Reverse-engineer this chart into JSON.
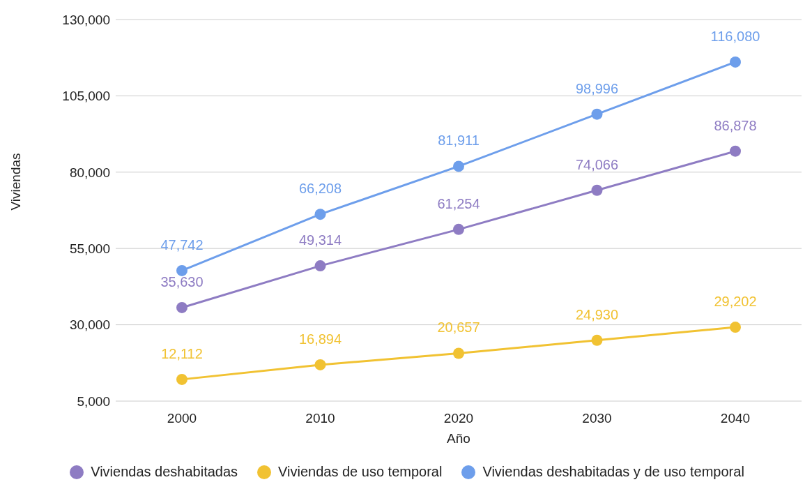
{
  "chart_data": {
    "type": "line",
    "xlabel": "Año",
    "ylabel": "Viviendas",
    "categories": [
      "2000",
      "2010",
      "2020",
      "2030",
      "2040"
    ],
    "series": [
      {
        "name": "Viviendas deshabitadas",
        "color": "#8e7cc3",
        "values": [
          35630,
          49314,
          61254,
          74066,
          86878
        ],
        "value_labels": [
          "35,630",
          "49,314",
          "61,254",
          "74,066",
          "86,878"
        ]
      },
      {
        "name": "Viviendas de uso temporal",
        "color": "#f1c232",
        "values": [
          12112,
          16894,
          20657,
          24930,
          29202
        ],
        "value_labels": [
          "12,112",
          "16,894",
          "20,657",
          "24,930",
          "29,202"
        ]
      },
      {
        "name": "Viviendas deshabitadas y de uso temporal",
        "color": "#6d9eeb",
        "values": [
          47742,
          66208,
          81911,
          98996,
          116080
        ],
        "value_labels": [
          "47,742",
          "66,208",
          "81,911",
          "98,996",
          "116,080"
        ]
      }
    ],
    "ylim": [
      5000,
      130000
    ],
    "yticks": [
      {
        "value": 5000,
        "label": "5,000"
      },
      {
        "value": 30000,
        "label": "30,000"
      },
      {
        "value": 55000,
        "label": "55,000"
      },
      {
        "value": 80000,
        "label": "80,000"
      },
      {
        "value": 105000,
        "label": "105,000"
      },
      {
        "value": 130000,
        "label": "130,000"
      }
    ],
    "grid": "y",
    "legend": "bottom",
    "marker": "circle",
    "line_style": "solid"
  }
}
